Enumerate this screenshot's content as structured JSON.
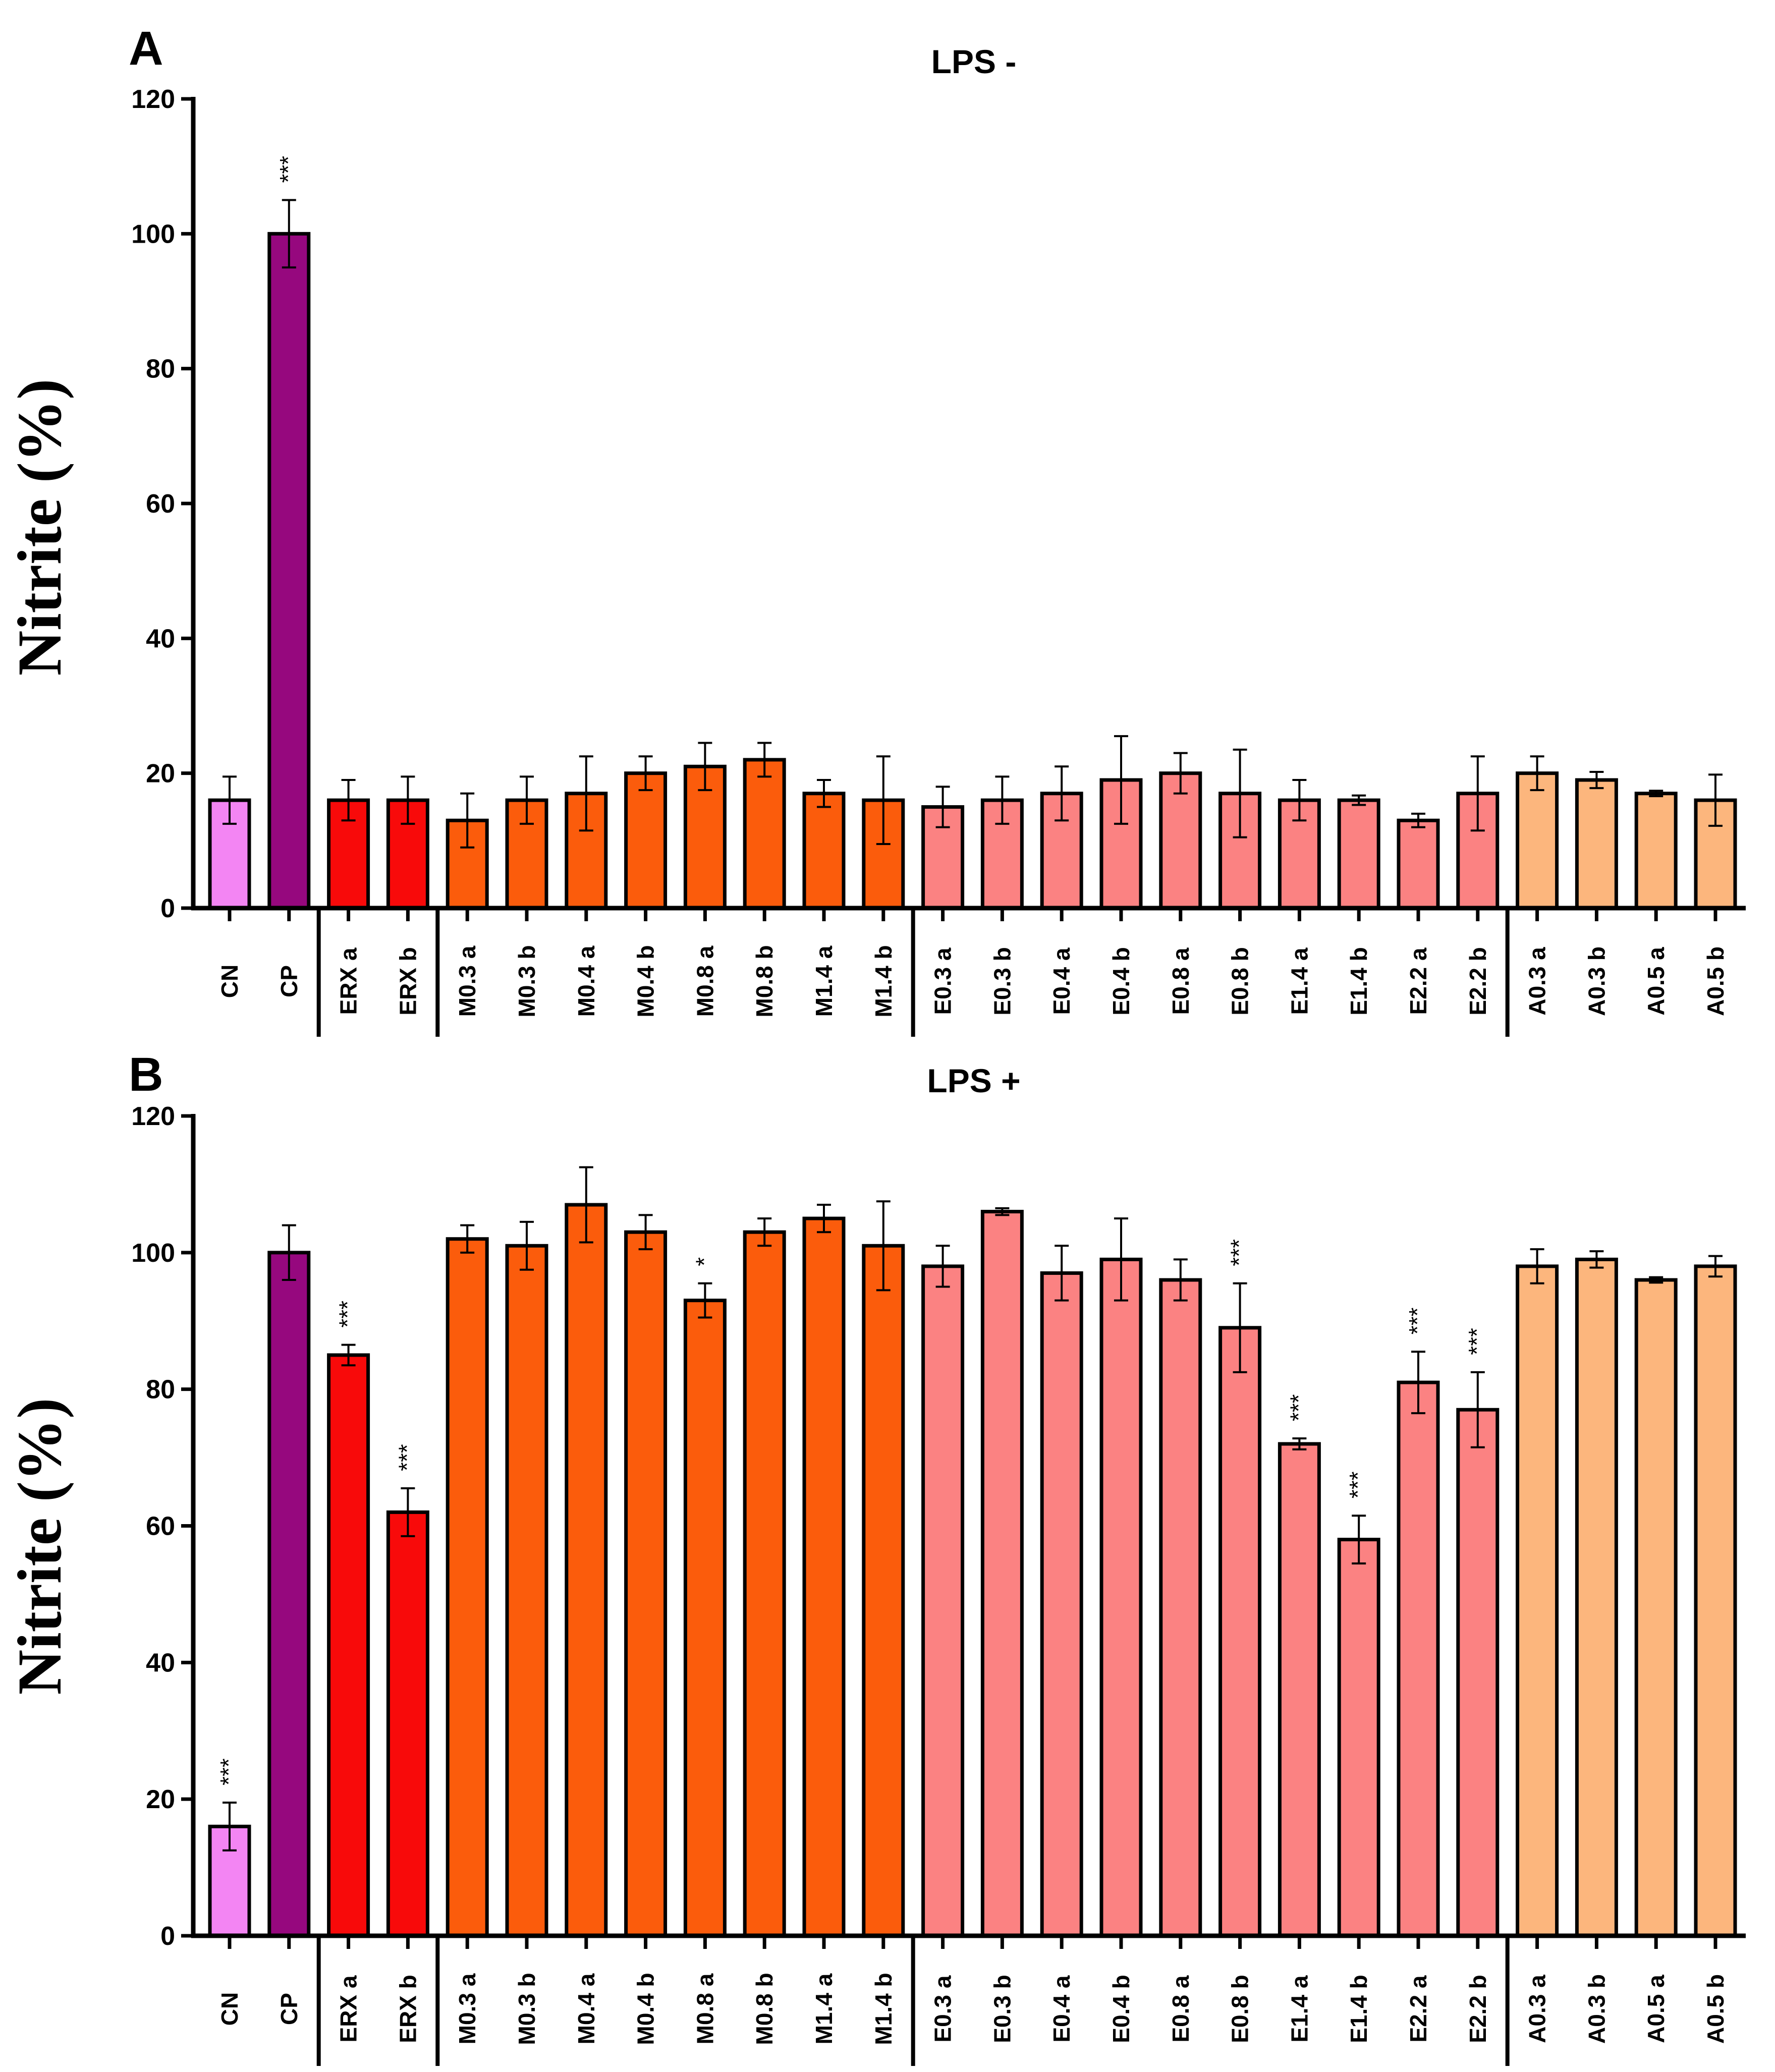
{
  "colors": {
    "CN": "#f385f3",
    "CP": "#96087e",
    "ERX": "#f80a0a",
    "M": "#fb5c0c",
    "E": "#fb8282",
    "A": "#fcb67d"
  },
  "chart_data": [
    {
      "type": "bar",
      "panel": "A",
      "title": "LPS -",
      "ylabel": "Nitrite (%)",
      "xlabel": "",
      "ylim": [
        0,
        120
      ],
      "yticks": [
        0,
        20,
        40,
        60,
        80,
        100,
        120
      ],
      "categories": [
        "CN",
        "CP",
        "ERX a",
        "ERX b",
        "M0.3 a",
        "M0.3 b",
        "M0.4 a",
        "M0.4 b",
        "M0.8 a",
        "M0.8 b",
        "M1.4 a",
        "M1.4 b",
        "E0.3 a",
        "E0.3 b",
        "E0.4 a",
        "E0.4 b",
        "E0.8 a",
        "E0.8 b",
        "E1.4 a",
        "E1.4 b",
        "E2.2 a",
        "E2.2 b",
        "A0.3 a",
        "A0.3 b",
        "A0.5 a",
        "A0.5 b"
      ],
      "groups": [
        "CN",
        "CP",
        "ERX",
        "ERX",
        "M",
        "M",
        "M",
        "M",
        "M",
        "M",
        "M",
        "M",
        "E",
        "E",
        "E",
        "E",
        "E",
        "E",
        "E",
        "E",
        "E",
        "E",
        "A",
        "A",
        "A",
        "A"
      ],
      "values": [
        16,
        100,
        16,
        16,
        13,
        16,
        17,
        20,
        21,
        22,
        17,
        16,
        15,
        16,
        17,
        19,
        20,
        17,
        16,
        16,
        13,
        17,
        20,
        19,
        17,
        16
      ],
      "errors": [
        3.5,
        5,
        3,
        3.5,
        4,
        3.5,
        5.5,
        2.5,
        3.5,
        2.5,
        2,
        6.5,
        3,
        3.5,
        4,
        6.5,
        3,
        6.5,
        3,
        0.7,
        1,
        5.5,
        2.5,
        1.2,
        0.4,
        3.8
      ],
      "significance": [
        "",
        "***",
        "",
        "",
        "",
        "",
        "",
        "",
        "",
        "",
        "",
        "",
        "",
        "",
        "",
        "",
        "",
        "",
        "",
        "",
        "",
        "",
        "",
        "",
        "",
        ""
      ]
    },
    {
      "type": "bar",
      "panel": "B",
      "title": "LPS +",
      "ylabel": "Nitrite (%)",
      "xlabel": "",
      "ylim": [
        0,
        120
      ],
      "yticks": [
        0,
        20,
        40,
        60,
        80,
        100,
        120
      ],
      "categories": [
        "CN",
        "CP",
        "ERX a",
        "ERX b",
        "M0.3 a",
        "M0.3 b",
        "M0.4 a",
        "M0.4 b",
        "M0.8 a",
        "M0.8 b",
        "M1.4 a",
        "M1.4 b",
        "E0.3 a",
        "E0.3 b",
        "E0.4 a",
        "E0.4 b",
        "E0.8 a",
        "E0.8 b",
        "E1.4 a",
        "E1.4 b",
        "E2.2 a",
        "E2.2 b",
        "A0.3 a",
        "A0.3 b",
        "A0.5 a",
        "A0.5 b"
      ],
      "groups": [
        "CN",
        "CP",
        "ERX",
        "ERX",
        "M",
        "M",
        "M",
        "M",
        "M",
        "M",
        "M",
        "M",
        "E",
        "E",
        "E",
        "E",
        "E",
        "E",
        "E",
        "E",
        "E",
        "E",
        "A",
        "A",
        "A",
        "A"
      ],
      "values": [
        16,
        100,
        85,
        62,
        102,
        101,
        107,
        103,
        93,
        103,
        105,
        101,
        98,
        106,
        97,
        99,
        96,
        89,
        72,
        58,
        81,
        77,
        98,
        99,
        96,
        98
      ],
      "errors": [
        3.5,
        4,
        1.5,
        3.5,
        2,
        3.5,
        5.5,
        2.5,
        2.5,
        2,
        2,
        6.5,
        3,
        0.5,
        4,
        6,
        3,
        6.5,
        0.8,
        3.5,
        4.5,
        5.5,
        2.5,
        1.2,
        0.4,
        1.5
      ],
      "significance": [
        "***",
        "",
        "***",
        "***",
        "",
        "",
        "",
        "",
        "*",
        "",
        "",
        "",
        "",
        "",
        "",
        "",
        "",
        "***",
        "***",
        "***",
        "***",
        "***",
        "",
        "",
        "",
        ""
      ]
    }
  ]
}
